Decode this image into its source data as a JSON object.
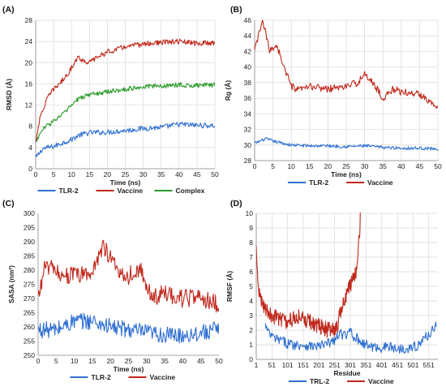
{
  "chart_data": [
    {
      "panel": "(A)",
      "type": "line",
      "xlabel": "Time (ns)",
      "ylabel": "RMSD (Å)",
      "xlim": [
        0,
        50
      ],
      "ylim": [
        0,
        28
      ],
      "xticks": [
        0,
        5,
        10,
        15,
        20,
        25,
        30,
        35,
        40,
        45,
        50
      ],
      "yticks": [
        0,
        4,
        8,
        12,
        16,
        20,
        24,
        28
      ],
      "xtick_labels": [
        "0",
        "5",
        "10",
        "15",
        "20",
        "25",
        "30",
        "35",
        "40",
        "45",
        "50"
      ],
      "ytick_labels": [
        "0",
        "4",
        "8",
        "12",
        "16",
        "20",
        "24",
        "28"
      ],
      "grid": true,
      "legend_position": "bottom",
      "series": [
        {
          "name": "TLR-2",
          "color": "#2e6fd1",
          "noise": 0.5,
          "x": [
            0,
            2,
            5,
            8,
            10,
            12,
            15,
            20,
            25,
            30,
            35,
            40,
            45,
            50
          ],
          "y": [
            2.0,
            3.8,
            4.2,
            5.0,
            5.5,
            6.3,
            6.8,
            6.9,
            7.2,
            7.6,
            7.8,
            8.4,
            8.2,
            8.1
          ]
        },
        {
          "name": "Vaccine",
          "color": "#c0281c",
          "noise": 0.5,
          "x": [
            0,
            1,
            3,
            5,
            8,
            10,
            11,
            12,
            13,
            15,
            17,
            20,
            25,
            30,
            35,
            40,
            45,
            50
          ],
          "y": [
            5.0,
            9.0,
            13.0,
            15.0,
            17.0,
            19.0,
            20.5,
            21.0,
            20.5,
            20.0,
            21.0,
            22.0,
            23.0,
            23.5,
            23.8,
            24.0,
            23.6,
            23.8
          ]
        },
        {
          "name": "Complex",
          "color": "#2a9a2a",
          "noise": 0.45,
          "x": [
            0,
            2,
            5,
            8,
            10,
            12,
            15,
            20,
            25,
            30,
            35,
            40,
            45,
            50
          ],
          "y": [
            5.0,
            7.5,
            9.0,
            10.5,
            12.0,
            13.2,
            14.0,
            14.5,
            15.0,
            15.5,
            15.6,
            15.8,
            15.7,
            15.8
          ]
        }
      ]
    },
    {
      "panel": "(B)",
      "type": "line",
      "xlabel": "Time (ns)",
      "ylabel": "Rg (Å)",
      "xlim": [
        0,
        50
      ],
      "ylim": [
        28,
        46
      ],
      "xticks": [
        0,
        5,
        10,
        15,
        20,
        25,
        30,
        35,
        40,
        45,
        50
      ],
      "yticks": [
        28,
        30,
        32,
        34,
        36,
        38,
        40,
        42,
        44,
        46
      ],
      "xtick_labels": [
        "0",
        "5",
        "10",
        "15",
        "20",
        "25",
        "30",
        "35",
        "40",
        "45",
        "50"
      ],
      "ytick_labels": [
        "28",
        "30",
        "32",
        "34",
        "36",
        "38",
        "40",
        "42",
        "44",
        "46"
      ],
      "grid": true,
      "legend_position": "bottom",
      "series": [
        {
          "name": "TLR-2",
          "color": "#2e6fd1",
          "noise": 0.2,
          "x": [
            0,
            3,
            5,
            8,
            10,
            15,
            20,
            25,
            30,
            35,
            40,
            45,
            50
          ],
          "y": [
            30.2,
            30.8,
            30.5,
            30.2,
            30.0,
            29.9,
            29.9,
            29.8,
            29.9,
            29.7,
            29.6,
            29.6,
            29.5
          ]
        },
        {
          "name": "Vaccine",
          "color": "#c0281c",
          "noise": 0.45,
          "x": [
            0,
            1,
            2,
            3,
            4,
            5,
            6,
            7,
            8,
            10,
            12,
            15,
            20,
            25,
            28,
            30,
            32,
            35,
            38,
            40,
            45,
            50
          ],
          "y": [
            42.0,
            44.0,
            45.8,
            44.5,
            42.0,
            42.5,
            42.8,
            41.5,
            40.0,
            37.5,
            37.0,
            37.5,
            37.2,
            37.5,
            38.0,
            39.0,
            38.2,
            36.0,
            37.2,
            36.8,
            36.5,
            35.0
          ]
        }
      ]
    },
    {
      "panel": "(C)",
      "type": "line",
      "xlabel": "Time (ns)",
      "ylabel": "SASA (nm²)",
      "xlim": [
        0,
        50
      ],
      "ylim": [
        250,
        300
      ],
      "xticks": [
        0,
        5,
        10,
        15,
        20,
        25,
        30,
        35,
        40,
        45,
        50
      ],
      "yticks": [
        250,
        255,
        260,
        265,
        270,
        275,
        280,
        285,
        290,
        295,
        300
      ],
      "xtick_labels": [
        "0",
        "5",
        "10",
        "15",
        "20",
        "25",
        "30",
        "35",
        "40",
        "45",
        "50"
      ],
      "ytick_labels": [
        "250",
        "255",
        "260",
        "265",
        "270",
        "275",
        "280",
        "285",
        "290",
        "295",
        "300"
      ],
      "grid": false,
      "legend_position": "bottom",
      "series": [
        {
          "name": "TLR-2",
          "color": "#2e6fd1",
          "noise": 3.0,
          "x": [
            0,
            5,
            10,
            15,
            20,
            25,
            30,
            35,
            40,
            45,
            50
          ],
          "y": [
            259,
            259,
            262,
            262,
            260,
            259,
            258,
            257,
            257,
            258,
            259
          ]
        },
        {
          "name": "Vaccine",
          "color": "#c0281c",
          "noise": 3.2,
          "x": [
            0,
            2,
            5,
            10,
            15,
            17,
            18,
            20,
            22,
            25,
            28,
            30,
            32,
            35,
            40,
            45,
            50
          ],
          "y": [
            270,
            282,
            279,
            278,
            279,
            286,
            289,
            284,
            280,
            278,
            281,
            274,
            270,
            272,
            270,
            270,
            268
          ]
        }
      ]
    },
    {
      "panel": "(D)",
      "type": "line",
      "xlabel": "Residue",
      "ylabel": "RMSF (Å)",
      "xlim": [
        1,
        580
      ],
      "ylim": [
        0,
        10
      ],
      "xticks": [
        1,
        51,
        101,
        151,
        201,
        251,
        301,
        351,
        401,
        451,
        501,
        551
      ],
      "yticks": [
        0,
        1,
        2,
        3,
        4,
        5,
        6,
        7,
        8,
        9,
        10
      ],
      "xtick_labels": [
        "1",
        "51",
        "101",
        "151",
        "201",
        "251",
        "301",
        "351",
        "401",
        "451",
        "501",
        "551"
      ],
      "ytick_labels": [
        "0",
        "1",
        "2",
        "3",
        "4",
        "5",
        "6",
        "7",
        "8",
        "9",
        "10"
      ],
      "grid": true,
      "legend_position": "bottom",
      "series": [
        {
          "name": "TRL-2",
          "color": "#2e6fd1",
          "noise": 0.35,
          "x": [
            30,
            40,
            60,
            80,
            100,
            120,
            150,
            180,
            200,
            220,
            250,
            270,
            290,
            300,
            310,
            330,
            350,
            380,
            400,
            420,
            450,
            480,
            500,
            520,
            540,
            560,
            575
          ],
          "y": [
            2.3,
            1.8,
            1.4,
            1.3,
            1.1,
            1.0,
            1.0,
            0.9,
            0.9,
            1.0,
            1.3,
            1.8,
            1.5,
            2.2,
            1.6,
            1.3,
            1.0,
            0.8,
            0.8,
            0.9,
            0.7,
            0.8,
            0.8,
            1.0,
            1.5,
            1.9,
            2.5
          ]
        },
        {
          "name": "Vaccine",
          "color": "#c0281c",
          "noise": 0.55,
          "x": [
            1,
            5,
            10,
            20,
            30,
            50,
            80,
            100,
            130,
            150,
            180,
            200,
            230,
            250,
            260,
            270,
            280,
            290,
            300,
            310,
            320,
            325,
            330,
            333
          ],
          "y": [
            7.5,
            5.5,
            4.5,
            4.0,
            3.5,
            3.0,
            2.8,
            2.5,
            3.0,
            2.8,
            2.5,
            2.3,
            2.0,
            2.0,
            2.4,
            3.2,
            3.8,
            4.5,
            5.0,
            5.5,
            6.0,
            7.5,
            8.5,
            10.0
          ]
        }
      ]
    }
  ]
}
